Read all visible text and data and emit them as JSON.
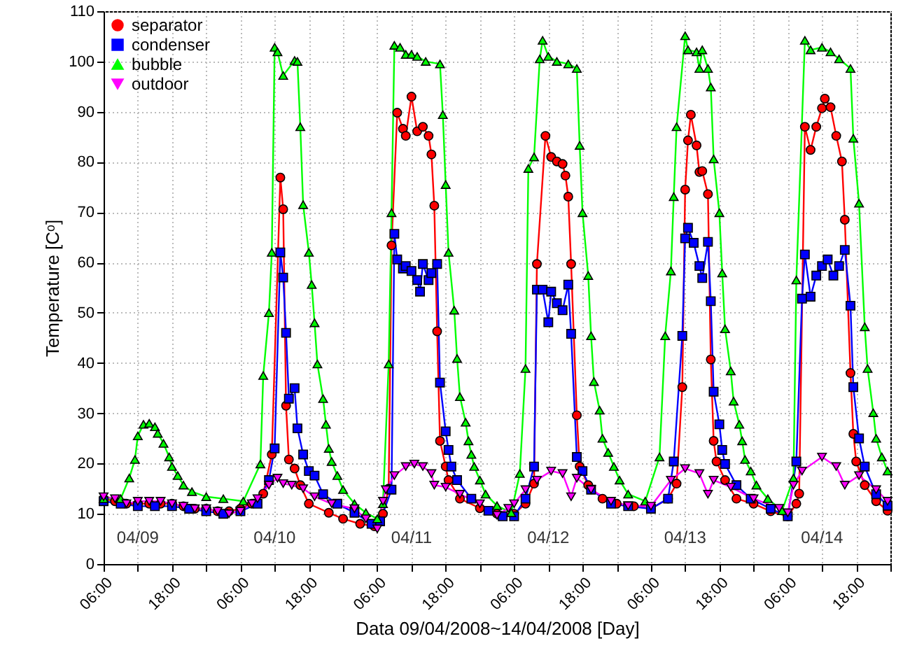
{
  "chart_data": {
    "type": "line",
    "xlabel": "Data 09/04/2008~14/04/2008 [Day]",
    "ylabel": "Temperature [Cᵒ]",
    "xlim": [
      "2008-04-09T06:00",
      "2008-04-15T00:00"
    ],
    "xticks": [
      {
        "value": "2008-04-09T06:00",
        "label": "06:00"
      },
      {
        "value": "2008-04-09T12:00",
        "label": null
      },
      {
        "value": "2008-04-09T18:00",
        "label": "18:00"
      },
      {
        "value": "2008-04-10T00:00",
        "label": null
      },
      {
        "value": "2008-04-10T06:00",
        "label": "06:00"
      },
      {
        "value": "2008-04-10T12:00",
        "label": null
      },
      {
        "value": "2008-04-10T18:00",
        "label": "18:00"
      },
      {
        "value": "2008-04-11T00:00",
        "label": null
      },
      {
        "value": "2008-04-11T06:00",
        "label": "06:00"
      },
      {
        "value": "2008-04-11T12:00",
        "label": null
      },
      {
        "value": "2008-04-11T18:00",
        "label": "18:00"
      },
      {
        "value": "2008-04-12T00:00",
        "label": null
      },
      {
        "value": "2008-04-12T06:00",
        "label": "06:00"
      },
      {
        "value": "2008-04-12T12:00",
        "label": null
      },
      {
        "value": "2008-04-12T18:00",
        "label": "18:00"
      },
      {
        "value": "2008-04-13T00:00",
        "label": null
      },
      {
        "value": "2008-04-13T06:00",
        "label": "06:00"
      },
      {
        "value": "2008-04-13T12:00",
        "label": null
      },
      {
        "value": "2008-04-13T18:00",
        "label": "18:00"
      },
      {
        "value": "2008-04-14T00:00",
        "label": null
      },
      {
        "value": "2008-04-14T06:00",
        "label": "06:00"
      },
      {
        "value": "2008-04-14T12:00",
        "label": null
      },
      {
        "value": "2008-04-14T18:00",
        "label": "18:00"
      },
      {
        "value": "2008-04-15T00:00",
        "label": null
      }
    ],
    "ylim": [
      0,
      110
    ],
    "yticks": [
      0,
      10,
      20,
      30,
      40,
      50,
      60,
      70,
      80,
      90,
      100,
      110
    ],
    "grid": true,
    "legend": "top left",
    "line_style": "solid",
    "annotations": [
      "04/09",
      "04/10",
      "04/11",
      "04/12",
      "04/13",
      "04/14"
    ],
    "series": [
      {
        "name": "separator",
        "color": "#ff0000",
        "marker": "circle",
        "x": [
          "2008-04-09T06:00",
          "2008-04-09T08:00",
          "2008-04-09T10:00",
          "2008-04-09T12:00",
          "2008-04-09T14:00",
          "2008-04-09T16:00",
          "2008-04-09T18:00",
          "2008-04-09T20:00",
          "2008-04-09T22:00",
          "2008-04-10T00:00",
          "2008-04-10T02:00",
          "2008-04-10T04:00",
          "2008-04-10T06:00",
          "2008-04-10T08:00",
          "2008-04-10T10:00",
          "2008-04-10T11:30",
          "2008-04-10T13:00",
          "2008-04-10T13:30",
          "2008-04-10T14:00",
          "2008-04-10T14:30",
          "2008-04-10T15:30",
          "2008-04-10T16:30",
          "2008-04-10T18:00",
          "2008-04-10T21:30",
          "2008-04-11T00:00",
          "2008-04-11T03:00",
          "2008-04-11T05:30",
          "2008-04-11T07:00",
          "2008-04-11T08:00",
          "2008-04-11T08:30",
          "2008-04-11T09:30",
          "2008-04-11T10:30",
          "2008-04-11T11:00",
          "2008-04-11T12:00",
          "2008-04-11T13:00",
          "2008-04-11T14:00",
          "2008-04-11T15:00",
          "2008-04-11T15:30",
          "2008-04-11T16:00",
          "2008-04-11T16:30",
          "2008-04-11T17:00",
          "2008-04-11T18:00",
          "2008-04-11T18:30",
          "2008-04-11T20:30",
          "2008-04-12T00:00",
          "2008-04-12T03:00",
          "2008-04-12T06:00",
          "2008-04-12T08:00",
          "2008-04-12T09:30",
          "2008-04-12T10:00",
          "2008-04-12T11:30",
          "2008-04-12T12:30",
          "2008-04-12T13:30",
          "2008-04-12T14:30",
          "2008-04-12T15:00",
          "2008-04-12T15:30",
          "2008-04-12T16:00",
          "2008-04-12T17:00",
          "2008-04-12T17:30",
          "2008-04-12T19:00",
          "2008-04-12T21:30",
          "2008-04-13T00:00",
          "2008-04-13T03:00",
          "2008-04-13T06:00",
          "2008-04-13T09:00",
          "2008-04-13T10:30",
          "2008-04-13T11:30",
          "2008-04-13T12:00",
          "2008-04-13T12:30",
          "2008-04-13T13:00",
          "2008-04-13T14:00",
          "2008-04-13T14:30",
          "2008-04-13T15:00",
          "2008-04-13T16:00",
          "2008-04-13T16:30",
          "2008-04-13T17:00",
          "2008-04-13T17:30",
          "2008-04-13T19:00",
          "2008-04-13T21:00",
          "2008-04-14T00:00",
          "2008-04-14T03:00",
          "2008-04-14T06:00",
          "2008-04-14T07:30",
          "2008-04-14T08:00",
          "2008-04-14T09:00",
          "2008-04-14T10:00",
          "2008-04-14T11:00",
          "2008-04-14T12:00",
          "2008-04-14T12:30",
          "2008-04-14T13:30",
          "2008-04-14T14:30",
          "2008-04-14T15:30",
          "2008-04-14T16:00",
          "2008-04-14T17:00",
          "2008-04-14T17:30",
          "2008-04-14T18:00",
          "2008-04-14T19:30",
          "2008-04-14T21:30",
          "2008-04-14T23:30"
        ],
        "values": [
          13,
          12.5,
          12,
          12,
          12,
          12,
          12,
          11.5,
          11,
          11,
          10.5,
          10.5,
          11,
          12,
          14,
          21.8,
          76.9,
          70.6,
          31.5,
          20.8,
          19,
          15.7,
          12,
          10.2,
          9,
          8,
          7.5,
          10,
          15,
          63.4,
          89.8,
          86.6,
          85.2,
          93,
          86.1,
          87,
          85.2,
          81.5,
          71.3,
          46.3,
          24.5,
          19.4,
          16.7,
          13,
          11.1,
          10,
          10,
          12,
          16,
          59.7,
          85.2,
          81,
          80.1,
          79.6,
          77.3,
          73.1,
          59.7,
          29.6,
          19.4,
          15.7,
          13,
          12,
          11.5,
          11,
          13,
          16,
          35.2,
          74.5,
          84.3,
          89.4,
          83.3,
          78,
          78.2,
          73.6,
          40.7,
          24.5,
          20.4,
          16.7,
          13,
          12,
          10.5,
          9.5,
          12,
          14,
          87,
          82.4,
          87,
          90.7,
          92.6,
          90.9,
          85.2,
          80.1,
          68.5,
          38,
          25.9,
          20.4,
          15.7,
          12.5,
          10.6
        ]
      },
      {
        "name": "condenser",
        "color": "#0000ff",
        "marker": "square",
        "x": [
          "2008-04-09T06:00",
          "2008-04-09T09:00",
          "2008-04-09T12:00",
          "2008-04-09T15:00",
          "2008-04-09T18:00",
          "2008-04-09T21:00",
          "2008-04-10T00:00",
          "2008-04-10T03:00",
          "2008-04-10T06:00",
          "2008-04-10T09:00",
          "2008-04-10T11:00",
          "2008-04-10T12:00",
          "2008-04-10T13:00",
          "2008-04-10T13:30",
          "2008-04-10T14:00",
          "2008-04-10T14:30",
          "2008-04-10T15:30",
          "2008-04-10T16:00",
          "2008-04-10T17:00",
          "2008-04-10T18:00",
          "2008-04-10T19:00",
          "2008-04-10T20:30",
          "2008-04-10T23:00",
          "2008-04-11T02:00",
          "2008-04-11T05:00",
          "2008-04-11T06:30",
          "2008-04-11T08:30",
          "2008-04-11T09:00",
          "2008-04-11T09:30",
          "2008-04-11T10:30",
          "2008-04-11T11:00",
          "2008-04-11T12:00",
          "2008-04-11T13:00",
          "2008-04-11T13:30",
          "2008-04-11T14:00",
          "2008-04-11T15:00",
          "2008-04-11T15:30",
          "2008-04-11T16:30",
          "2008-04-11T17:00",
          "2008-04-11T18:00",
          "2008-04-11T18:30",
          "2008-04-11T19:00",
          "2008-04-11T20:00",
          "2008-04-11T22:30",
          "2008-04-12T01:30",
          "2008-04-12T04:00",
          "2008-04-12T06:00",
          "2008-04-12T08:00",
          "2008-04-12T09:30",
          "2008-04-12T10:00",
          "2008-04-12T11:00",
          "2008-04-12T12:00",
          "2008-04-12T12:30",
          "2008-04-12T13:30",
          "2008-04-12T14:30",
          "2008-04-12T15:30",
          "2008-04-12T16:00",
          "2008-04-12T17:00",
          "2008-04-12T18:00",
          "2008-04-12T19:30",
          "2008-04-12T23:00",
          "2008-04-13T02:00",
          "2008-04-13T06:00",
          "2008-04-13T09:00",
          "2008-04-13T10:00",
          "2008-04-13T11:30",
          "2008-04-13T12:00",
          "2008-04-13T12:30",
          "2008-04-13T13:30",
          "2008-04-13T14:30",
          "2008-04-13T15:00",
          "2008-04-13T16:00",
          "2008-04-13T16:30",
          "2008-04-13T17:00",
          "2008-04-13T18:00",
          "2008-04-13T18:30",
          "2008-04-13T19:00",
          "2008-04-13T21:00",
          "2008-04-13T23:30",
          "2008-04-14T03:00",
          "2008-04-14T06:00",
          "2008-04-14T07:30",
          "2008-04-14T08:30",
          "2008-04-14T09:00",
          "2008-04-14T10:00",
          "2008-04-14T11:00",
          "2008-04-14T12:00",
          "2008-04-14T13:00",
          "2008-04-14T14:00",
          "2008-04-14T15:00",
          "2008-04-14T16:00",
          "2008-04-14T17:00",
          "2008-04-14T17:30",
          "2008-04-14T18:30",
          "2008-04-14T19:30",
          "2008-04-14T21:30",
          "2008-04-14T23:30"
        ],
        "values": [
          12.5,
          12,
          11.5,
          11.5,
          11.5,
          11,
          10.5,
          10,
          10.5,
          12,
          16.7,
          23,
          62,
          57,
          46,
          32.9,
          35,
          27,
          21.8,
          18.5,
          17.6,
          13.9,
          12,
          10.2,
          8,
          8.5,
          14.8,
          65.7,
          60.6,
          58.8,
          59.3,
          58.3,
          56.5,
          54.2,
          59.7,
          56.5,
          57.9,
          59.7,
          36.1,
          26.4,
          22.7,
          19.4,
          16.7,
          13,
          10.6,
          9.5,
          9.5,
          13,
          19.4,
          54.6,
          54.6,
          48.1,
          54.2,
          51.9,
          50.5,
          55.6,
          45.8,
          21.3,
          18.5,
          14.8,
          12,
          11.5,
          11,
          13,
          20.4,
          45.4,
          64.8,
          66.9,
          63.9,
          59.3,
          56.9,
          64.1,
          52.3,
          34.3,
          27.8,
          22.7,
          19.9,
          15.7,
          13,
          11,
          9.5,
          20.4,
          52.8,
          61.6,
          53.2,
          57.4,
          59.3,
          60.6,
          57.4,
          59.3,
          62.5,
          51.4,
          35.2,
          25,
          19.4,
          13.9,
          11.6
        ]
      },
      {
        "name": "bubble",
        "color": "#00ff00",
        "marker": "triangle",
        "x": [
          "2008-04-09T06:00",
          "2008-04-09T09:00",
          "2008-04-09T10:30",
          "2008-04-09T11:30",
          "2008-04-09T12:00",
          "2008-04-09T13:00",
          "2008-04-09T14:00",
          "2008-04-09T15:00",
          "2008-04-09T15:30",
          "2008-04-09T16:30",
          "2008-04-09T17:30",
          "2008-04-09T18:00",
          "2008-04-09T19:00",
          "2008-04-09T20:00",
          "2008-04-09T21:30",
          "2008-04-10T00:00",
          "2008-04-10T03:00",
          "2008-04-10T06:30",
          "2008-04-10T09:30",
          "2008-04-10T10:00",
          "2008-04-10T11:00",
          "2008-04-10T11:30",
          "2008-04-10T12:00",
          "2008-04-10T12:30",
          "2008-04-10T13:30",
          "2008-04-10T15:30",
          "2008-04-10T16:00",
          "2008-04-10T16:30",
          "2008-04-10T17:00",
          "2008-04-10T18:00",
          "2008-04-10T18:30",
          "2008-04-10T19:00",
          "2008-04-10T19:30",
          "2008-04-10T20:30",
          "2008-04-10T21:00",
          "2008-04-10T21:30",
          "2008-04-10T22:00",
          "2008-04-10T23:00",
          "2008-04-11T00:00",
          "2008-04-11T02:00",
          "2008-04-11T04:00",
          "2008-04-11T06:00",
          "2008-04-11T07:00",
          "2008-04-11T08:00",
          "2008-04-11T08:30",
          "2008-04-11T09:00",
          "2008-04-11T10:00",
          "2008-04-11T11:00",
          "2008-04-11T12:00",
          "2008-04-11T13:00",
          "2008-04-11T14:30",
          "2008-04-11T17:00",
          "2008-04-11T17:30",
          "2008-04-11T18:00",
          "2008-04-11T18:30",
          "2008-04-11T19:30",
          "2008-04-11T20:00",
          "2008-04-11T20:30",
          "2008-04-11T21:30",
          "2008-04-11T22:00",
          "2008-04-11T22:30",
          "2008-04-11T23:00",
          "2008-04-12T00:00",
          "2008-04-12T01:00",
          "2008-04-12T03:00",
          "2008-04-12T05:30",
          "2008-04-12T07:00",
          "2008-04-12T08:00",
          "2008-04-12T08:30",
          "2008-04-12T09:30",
          "2008-04-12T10:30",
          "2008-04-12T11:00",
          "2008-04-12T12:00",
          "2008-04-12T13:30",
          "2008-04-12T15:30",
          "2008-04-12T17:00",
          "2008-04-12T17:30",
          "2008-04-12T18:00",
          "2008-04-12T19:00",
          "2008-04-12T19:30",
          "2008-04-12T20:00",
          "2008-04-12T21:00",
          "2008-04-12T21:30",
          "2008-04-12T22:30",
          "2008-04-12T23:30",
          "2008-04-13T00:30",
          "2008-04-13T02:00",
          "2008-04-13T05:00",
          "2008-04-13T07:30",
          "2008-04-13T08:30",
          "2008-04-13T09:30",
          "2008-04-13T10:00",
          "2008-04-13T10:30",
          "2008-04-13T12:00",
          "2008-04-13T12:30",
          "2008-04-13T14:00",
          "2008-04-13T14:30",
          "2008-04-13T15:00",
          "2008-04-13T16:00",
          "2008-04-13T16:30",
          "2008-04-13T17:00",
          "2008-04-13T18:00",
          "2008-04-13T18:30",
          "2008-04-13T19:00",
          "2008-04-13T20:00",
          "2008-04-13T20:30",
          "2008-04-13T21:30",
          "2008-04-13T22:00",
          "2008-04-13T22:30",
          "2008-04-13T23:30",
          "2008-04-14T00:30",
          "2008-04-14T02:30",
          "2008-04-14T05:00",
          "2008-04-14T07:00",
          "2008-04-14T07:30",
          "2008-04-14T09:00",
          "2008-04-14T10:00",
          "2008-04-14T12:00",
          "2008-04-14T13:30",
          "2008-04-14T15:00",
          "2008-04-14T17:00",
          "2008-04-14T17:30",
          "2008-04-14T18:30",
          "2008-04-14T19:30",
          "2008-04-14T20:00",
          "2008-04-14T21:00",
          "2008-04-14T21:30",
          "2008-04-14T22:30",
          "2008-04-14T23:30"
        ],
        "values": [
          13,
          13,
          17.1,
          20.8,
          25.5,
          27.8,
          28,
          27.3,
          26,
          24,
          21.3,
          19.4,
          17.6,
          15.7,
          14.4,
          13.4,
          13,
          12.5,
          19.9,
          37.5,
          50,
          62,
          102.8,
          101.9,
          97.2,
          100.2,
          100,
          87,
          71.5,
          62,
          55.6,
          48,
          39.8,
          32.9,
          27.8,
          23,
          20.4,
          17.6,
          14.8,
          12,
          10.2,
          9,
          12,
          39.8,
          69.9,
          103.2,
          102.8,
          101.4,
          101.4,
          101,
          100,
          99.5,
          89.4,
          75.5,
          62,
          50.5,
          40.9,
          33.3,
          28.2,
          24.5,
          21.8,
          19.4,
          16.7,
          13.9,
          11.6,
          10.2,
          18,
          38.9,
          78.7,
          81,
          100.5,
          104.2,
          101,
          100,
          99.5,
          98.6,
          83.3,
          69.9,
          57.4,
          45.4,
          36.3,
          30.6,
          25,
          22.2,
          19.4,
          16.7,
          13.9,
          12.5,
          21.3,
          45.4,
          58.3,
          73.1,
          87,
          105.1,
          102.3,
          101.9,
          98.6,
          102.3,
          98.6,
          94.9,
          80.6,
          69.9,
          57.9,
          46.8,
          38.4,
          32.4,
          27.8,
          24.5,
          20.8,
          18.5,
          15.7,
          13,
          10.6,
          17.1,
          56.5,
          104.2,
          102.3,
          102.8,
          101.9,
          100.5,
          98.6,
          84.7,
          71.8,
          47.2,
          38.9,
          30.1,
          25,
          21.3,
          18.5
        ]
      },
      {
        "name": "outdoor",
        "color": "#ff00ff",
        "marker": "triangle-down",
        "x": [
          "2008-04-09T06:00",
          "2008-04-09T08:00",
          "2008-04-09T10:00",
          "2008-04-09T12:00",
          "2008-04-09T14:00",
          "2008-04-09T16:00",
          "2008-04-09T18:00",
          "2008-04-09T20:00",
          "2008-04-09T22:00",
          "2008-04-10T00:00",
          "2008-04-10T02:00",
          "2008-04-10T04:00",
          "2008-04-10T06:00",
          "2008-04-10T08:00",
          "2008-04-10T09:00",
          "2008-04-10T11:00",
          "2008-04-10T12:30",
          "2008-04-10T13:30",
          "2008-04-10T15:00",
          "2008-04-10T17:00",
          "2008-04-10T19:00",
          "2008-04-10T22:00",
          "2008-04-11T02:00",
          "2008-04-11T04:00",
          "2008-04-11T06:00",
          "2008-04-11T07:00",
          "2008-04-11T07:30",
          "2008-04-11T09:00",
          "2008-04-11T11:00",
          "2008-04-11T12:30",
          "2008-04-11T14:00",
          "2008-04-11T15:30",
          "2008-04-11T16:00",
          "2008-04-11T18:00",
          "2008-04-11T20:30",
          "2008-04-12T00:00",
          "2008-04-12T03:00",
          "2008-04-12T05:00",
          "2008-04-12T06:00",
          "2008-04-12T08:00",
          "2008-04-12T10:00",
          "2008-04-12T12:30",
          "2008-04-12T14:30",
          "2008-04-12T16:00",
          "2008-04-12T17:00",
          "2008-04-12T19:30",
          "2008-04-12T23:00",
          "2008-04-13T02:00",
          "2008-04-13T06:00",
          "2008-04-13T09:30",
          "2008-04-13T12:00",
          "2008-04-13T14:30",
          "2008-04-13T16:00",
          "2008-04-13T17:00",
          "2008-04-13T20:00",
          "2008-04-14T00:00",
          "2008-04-14T04:30",
          "2008-04-14T06:00",
          "2008-04-14T07:00",
          "2008-04-14T08:30",
          "2008-04-14T12:00",
          "2008-04-14T14:30",
          "2008-04-14T16:00",
          "2008-04-14T18:30",
          "2008-04-14T21:30",
          "2008-04-14T23:30"
        ],
        "values": [
          13.4,
          13,
          12,
          12.5,
          12.5,
          12.5,
          12,
          11.5,
          11,
          11,
          10.5,
          10,
          10.5,
          12,
          13,
          15.7,
          17.1,
          16,
          15.7,
          15,
          13.4,
          12,
          11,
          9,
          7,
          12.5,
          14.8,
          17.6,
          19.4,
          19.9,
          19.4,
          18,
          15.7,
          15.3,
          13.9,
          12,
          9.7,
          11.1,
          12,
          14.8,
          16.7,
          18.5,
          18,
          13.4,
          17.1,
          14.8,
          12.5,
          11.6,
          11.5,
          16.7,
          19,
          18,
          13.9,
          16.7,
          15.3,
          13,
          11.1,
          10.2,
          15.7,
          18.5,
          21.3,
          19.4,
          15.7,
          17.6,
          14.8,
          12.5
        ]
      }
    ]
  }
}
